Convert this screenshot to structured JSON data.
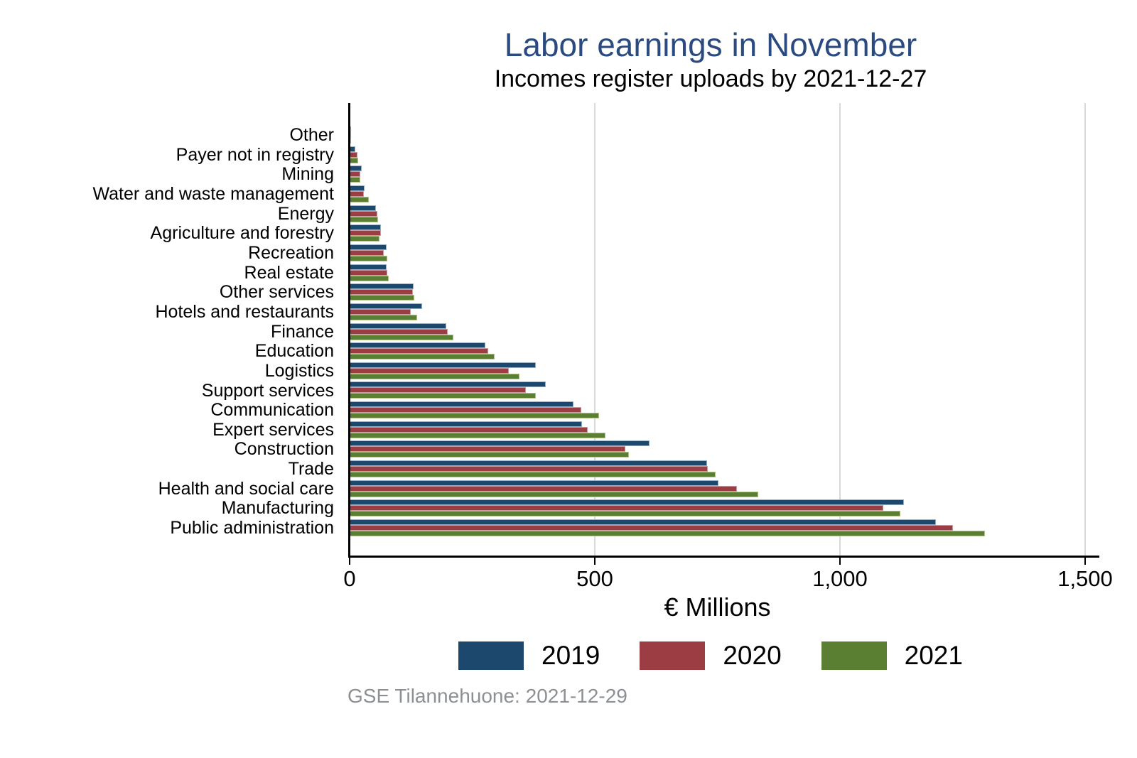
{
  "title": "Labor earnings in November",
  "subtitle": "Incomes register uploads by 2021-12-27",
  "footer": "GSE Tilannehuone: 2021-12-29",
  "colors": {
    "title_text": "#2b4a80",
    "subtitle_text": "#000000",
    "footer_text": "#8c8f93",
    "axis": "#000000",
    "grid": "#d9d9d9",
    "series_2019": "#1d486e",
    "series_2020": "#9c3d44",
    "series_2021": "#5a7e32"
  },
  "chart_data": {
    "type": "bar",
    "orientation": "horizontal",
    "title": "Labor earnings in November",
    "subtitle": "Incomes register uploads by 2021-12-27",
    "xlabel": "€ Millions",
    "ylabel": "",
    "xlim": [
      0,
      1500
    ],
    "xticks": [
      0,
      500,
      1000,
      1500
    ],
    "xtick_labels": [
      "0",
      "500",
      "1,000",
      "1,500"
    ],
    "grid": "vertical",
    "legend_position": "bottom",
    "categories": [
      "Other",
      "Payer not in registry",
      "Mining",
      "Water and waste management",
      "Energy",
      "Agriculture and forestry",
      "Recreation",
      "Real estate",
      "Other services",
      "Hotels and restaurants",
      "Finance",
      "Education",
      "Logistics",
      "Support services",
      "Communication",
      "Expert services",
      "Construction",
      "Trade",
      "Health and social care",
      "Manufacturing",
      "Public administration"
    ],
    "series": [
      {
        "name": "2019",
        "color": "#1d486e",
        "edge_color": "#93afc5",
        "values": [
          2,
          12,
          25,
          30,
          53,
          63,
          75,
          75,
          130,
          148,
          197,
          277,
          380,
          400,
          456,
          474,
          612,
          729,
          752,
          1131,
          1195
        ]
      },
      {
        "name": "2020",
        "color": "#9c3d44",
        "edge_color": "#c79ba0",
        "values": [
          3,
          16,
          21,
          29,
          57,
          64,
          70,
          77,
          129,
          125,
          200,
          283,
          325,
          359,
          472,
          486,
          562,
          730,
          790,
          1089,
          1230
        ]
      },
      {
        "name": "2021",
        "color": "#5a7e32",
        "edge_color": "#aec488",
        "values": [
          1,
          18,
          22,
          39,
          58,
          61,
          77,
          80,
          132,
          138,
          211,
          295,
          346,
          380,
          508,
          522,
          570,
          746,
          833,
          1123,
          1296
        ]
      }
    ]
  }
}
